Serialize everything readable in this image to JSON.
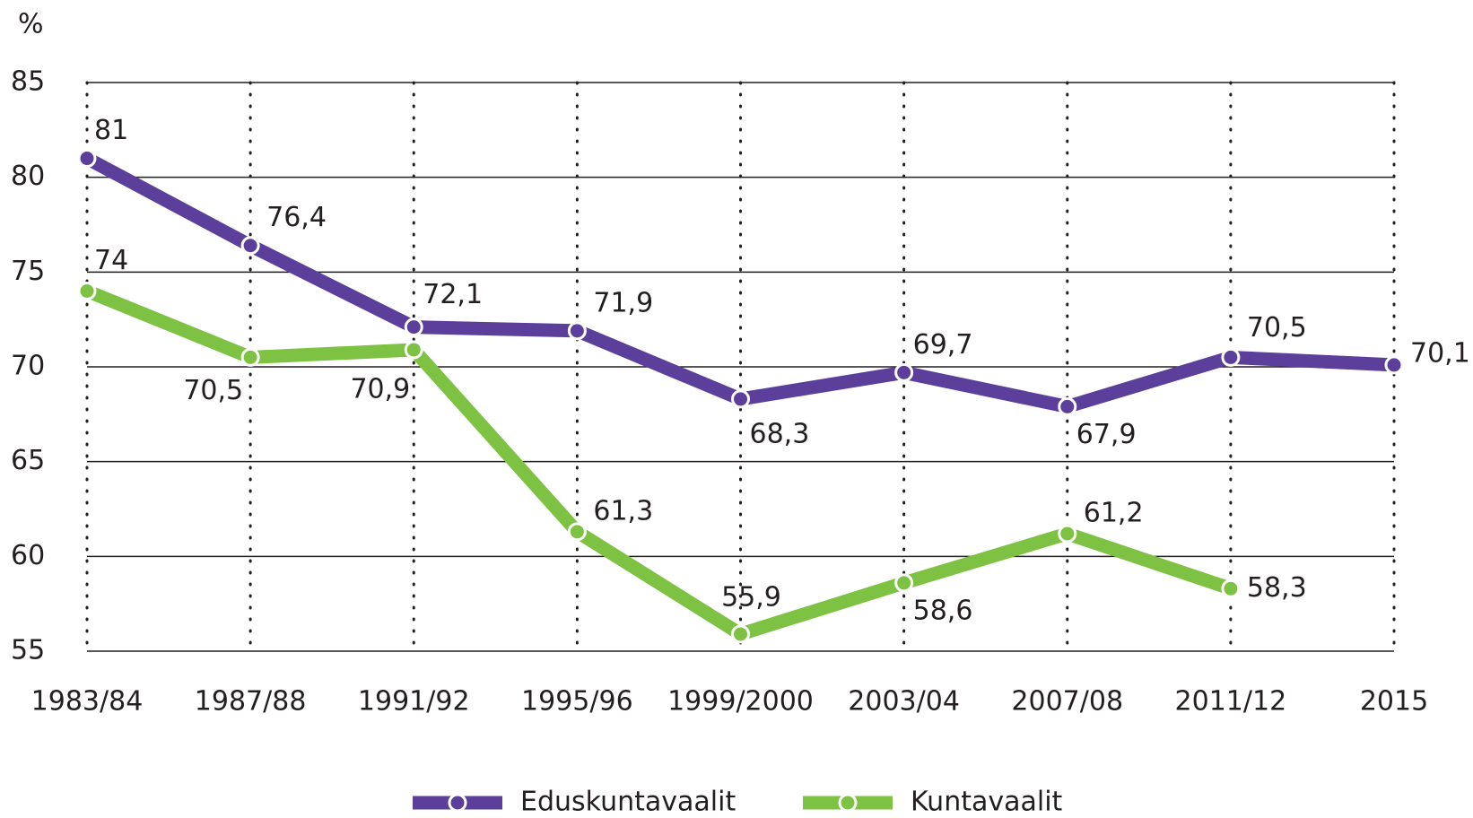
{
  "chart_data": {
    "type": "line",
    "y_label": "%",
    "categories": [
      "1983/84",
      "1987/88",
      "1991/92",
      "1995/96",
      "1999/2000",
      "2003/04",
      "2007/08",
      "2011/12",
      "2015"
    ],
    "series": [
      {
        "name": "Eduskuntavaalit",
        "color": "#5b3f9a",
        "values": [
          81,
          76.4,
          72.1,
          71.9,
          68.3,
          69.7,
          67.9,
          70.5,
          70.1
        ],
        "value_labels": [
          "81",
          "76,4",
          "72,1",
          "71,9",
          "68,3",
          "69,7",
          "67,9",
          "70,5",
          "70,1"
        ]
      },
      {
        "name": "Kuntavaalit",
        "color": "#7dc243",
        "values": [
          74,
          70.5,
          70.9,
          61.3,
          55.9,
          58.6,
          61.2,
          58.3,
          null
        ],
        "value_labels": [
          "74",
          "70,5",
          "70,9",
          "61,3",
          "55,9",
          "58,6",
          "61,2",
          "58,3",
          null
        ]
      }
    ],
    "ylim": [
      55,
      85
    ],
    "yticks": [
      55,
      60,
      65,
      70,
      75,
      80,
      85
    ],
    "grid": true
  }
}
